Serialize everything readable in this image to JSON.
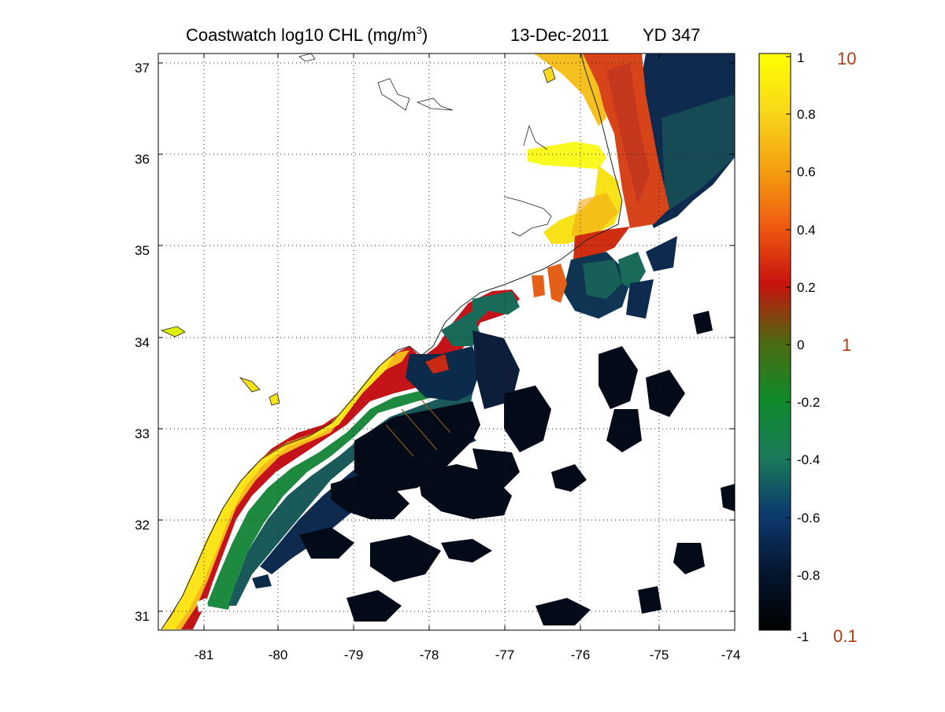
{
  "title": {
    "main": "Coastwatch  log10  CHL (mg/m",
    "superscript": "3",
    "close": ")",
    "date": "13-Dec-2011",
    "yearday": "YD 347"
  },
  "map": {
    "lon_range": [
      -81.5,
      -74
    ],
    "lat_range": [
      30.8,
      37.1
    ],
    "lon_ticks": [
      "-81",
      "-80",
      "-79",
      "-78",
      "-77",
      "-76",
      "-75",
      "-74"
    ],
    "lat_ticks": [
      "37",
      "36",
      "35",
      "34",
      "33",
      "32",
      "31"
    ],
    "grid": true
  },
  "colorbar": {
    "range": [
      -1,
      1
    ],
    "tick_labels": [
      "1",
      "0.8",
      "0.6",
      "0.4",
      "0.2",
      "0",
      "-0.2",
      "-0.4",
      "-0.6",
      "-0.8",
      "-1"
    ],
    "concentration_labels": [
      "10",
      "1",
      "0.1"
    ],
    "concentration_color": "#b03a10",
    "stops": [
      "#000000",
      "#061630",
      "#0c3a6e",
      "#1a7a5a",
      "#0e8a2a",
      "#4e6a10",
      "#c8120e",
      "#ef5a10",
      "#f5a010",
      "#f7d81a",
      "#ffff00"
    ]
  }
}
